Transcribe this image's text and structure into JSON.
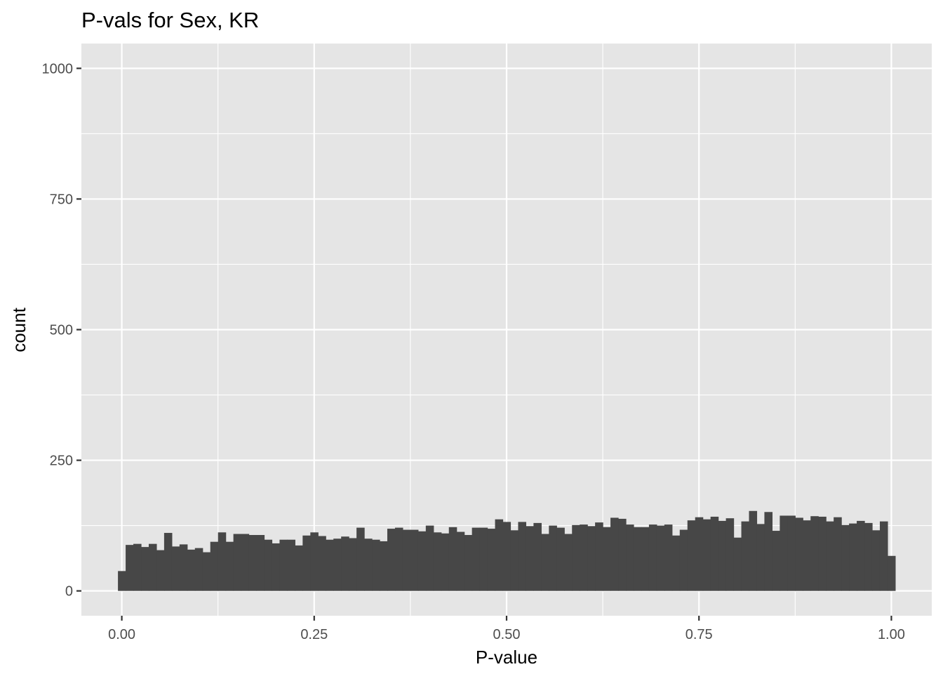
{
  "chart_data": {
    "type": "bar",
    "title": "P-vals for Sex, KR",
    "xlabel": "P-value",
    "ylabel": "count",
    "xlim": [
      -0.0525,
      1.0525
    ],
    "ylim": [
      -47.5,
      1047.5
    ],
    "x_ticks": [
      "0.00",
      "0.25",
      "0.50",
      "0.75",
      "1.00"
    ],
    "x_tick_values": [
      0,
      0.25,
      0.5,
      0.75,
      1
    ],
    "y_ticks": [
      "0",
      "250",
      "500",
      "750",
      "1000"
    ],
    "y_tick_values": [
      0,
      250,
      500,
      750,
      1000
    ],
    "bin_width": 0.01,
    "bin_centers_start": 0,
    "counts": [
      38,
      88,
      90,
      84,
      90,
      78,
      111,
      85,
      89,
      79,
      82,
      74,
      94,
      112,
      94,
      109,
      109,
      107,
      107,
      98,
      91,
      98,
      98,
      87,
      106,
      112,
      105,
      98,
      100,
      104,
      101,
      121,
      100,
      98,
      95,
      119,
      121,
      117,
      117,
      114,
      125,
      112,
      110,
      122,
      113,
      107,
      121,
      121,
      119,
      137,
      132,
      116,
      132,
      124,
      130,
      109,
      125,
      121,
      109,
      126,
      127,
      124,
      131,
      122,
      140,
      138,
      127,
      122,
      122,
      127,
      125,
      127,
      106,
      117,
      135,
      141,
      137,
      142,
      134,
      139,
      102,
      133,
      153,
      128,
      151,
      115,
      144,
      144,
      140,
      135,
      143,
      142,
      133,
      141,
      126,
      129,
      134,
      130,
      116,
      133,
      67
    ],
    "grid": true,
    "colors": {
      "bar": "#474747",
      "panel": "#e5e5e5",
      "grid": "#ffffff",
      "tick": "#333333"
    }
  }
}
